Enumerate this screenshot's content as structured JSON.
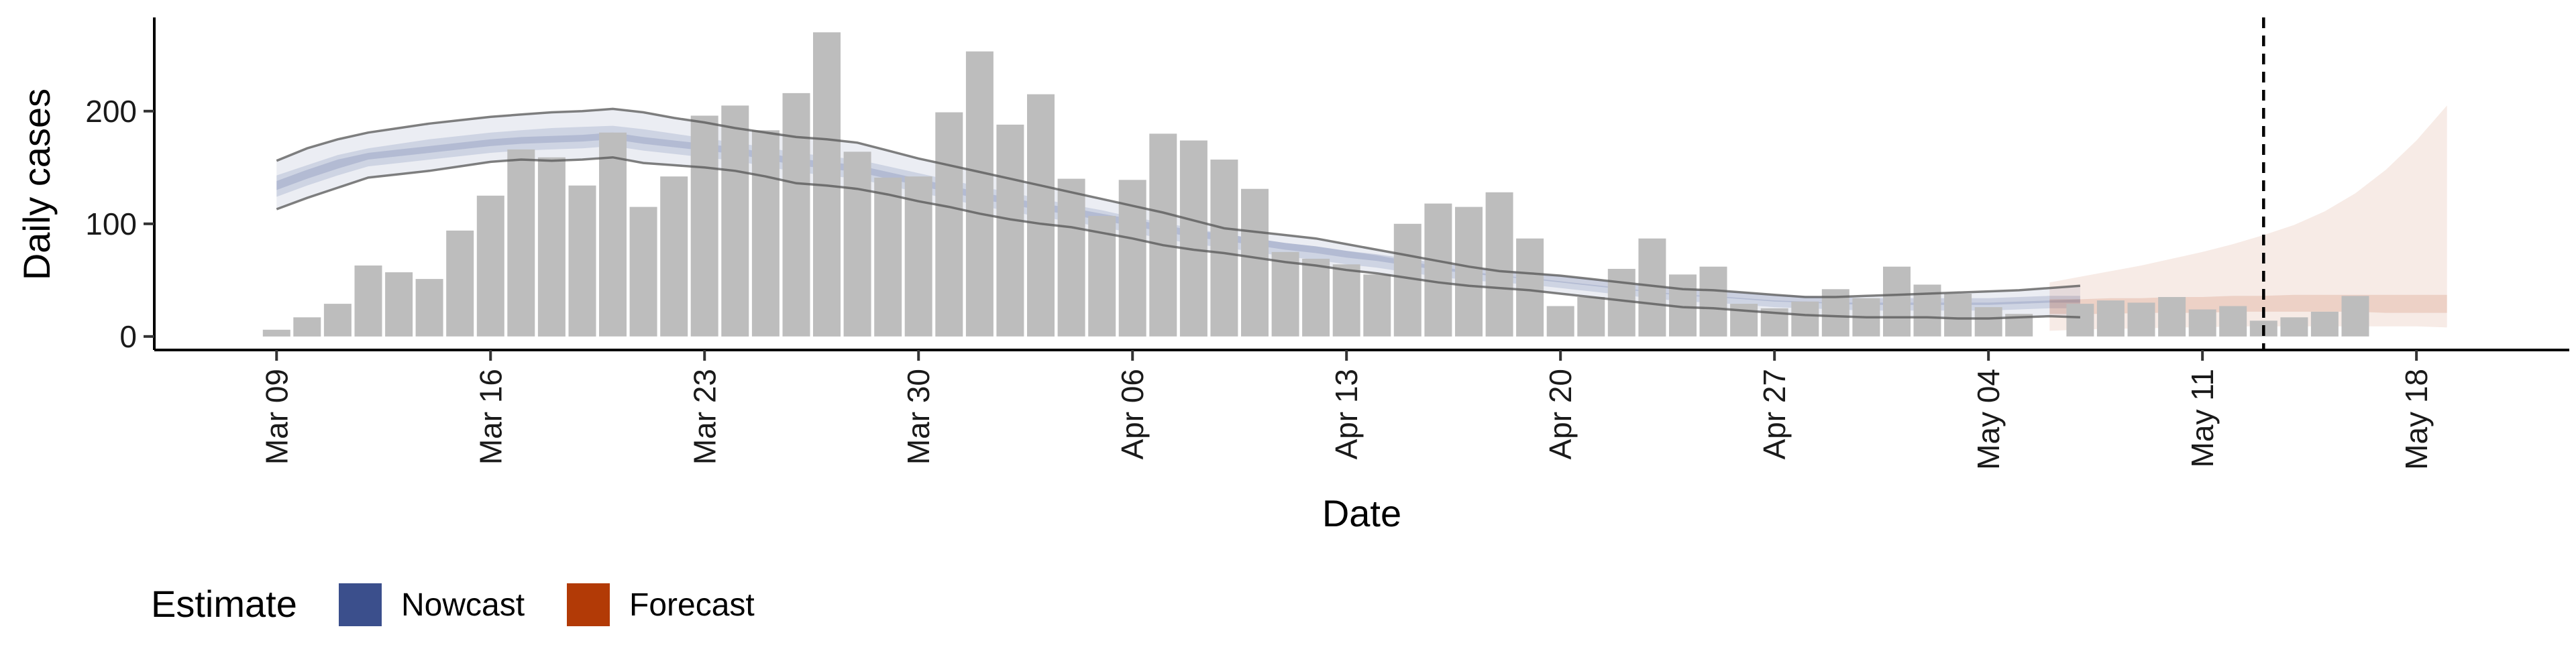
{
  "chart_data": {
    "type": "bar",
    "title": "",
    "xlabel": "Date",
    "ylabel": "Daily cases",
    "ylim": [
      -12,
      282
    ],
    "yticks": [
      0,
      100,
      200
    ],
    "xticks": [
      "Mar 09",
      "Mar 16",
      "Mar 23",
      "Mar 30",
      "Apr 06",
      "Apr 13",
      "Apr 20",
      "Apr 27",
      "May 04",
      "May 11",
      "May 18"
    ],
    "x_start": "2020-03-09",
    "x_end": "2020-05-19",
    "xlim": [
      "2020-03-05",
      "2020-05-23"
    ],
    "grid": false,
    "legend_position": "bottom-left",
    "vline_date": "2020-05-13",
    "bars": {
      "start": "2020-03-09",
      "values": [
        6,
        17,
        29,
        63,
        57,
        51,
        94,
        125,
        166,
        159,
        134,
        181,
        115,
        142,
        196,
        205,
        183,
        216,
        270,
        164,
        141,
        142,
        199,
        253,
        188,
        215,
        140,
        107,
        139,
        180,
        174,
        157,
        131,
        75,
        69,
        64,
        55,
        100,
        118,
        115,
        128,
        87,
        27,
        35,
        60,
        87,
        55,
        62,
        29,
        25,
        31,
        42,
        34,
        62,
        46,
        38,
        26,
        20,
        0,
        29,
        32,
        30,
        35,
        24,
        27,
        14,
        17,
        22,
        36
      ],
      "color": "#bdbdbd"
    },
    "legend": {
      "title": "Estimate",
      "items": [
        {
          "label": "Nowcast",
          "color": "#3b4f8c"
        },
        {
          "label": "Forecast",
          "color": "#b23a06"
        }
      ]
    },
    "series": [
      {
        "name": "Nowcast",
        "color": "#3b4f8c",
        "start": "2020-03-09",
        "lower_90": [
          113,
          123,
          132,
          141,
          144,
          147,
          151,
          155,
          157,
          156,
          157,
          159,
          154,
          152,
          150,
          147,
          142,
          136,
          134,
          131,
          126,
          120,
          115,
          109,
          104,
          100,
          97,
          92,
          87,
          81,
          77,
          74,
          70,
          66,
          63,
          59,
          56,
          52,
          48,
          45,
          43,
          41,
          38,
          35,
          32,
          29,
          26,
          25,
          23,
          21,
          19,
          18,
          17,
          17,
          17,
          16,
          16,
          17,
          18,
          17
        ],
        "upper_90": [
          156,
          167,
          175,
          181,
          185,
          189,
          192,
          195,
          197,
          199,
          200,
          202,
          199,
          194,
          190,
          185,
          181,
          177,
          175,
          172,
          165,
          158,
          152,
          146,
          140,
          134,
          128,
          122,
          116,
          110,
          103,
          96,
          93,
          90,
          87,
          82,
          77,
          72,
          67,
          62,
          58,
          56,
          54,
          51,
          48,
          45,
          42,
          41,
          39,
          37,
          35,
          35,
          36,
          37,
          38,
          39,
          40,
          41,
          43,
          45
        ],
        "lower_50": [
          124,
          134,
          143,
          151,
          154,
          157,
          160,
          163,
          165,
          166,
          167,
          169,
          165,
          162,
          159,
          156,
          151,
          146,
          143,
          140,
          134,
          128,
          122,
          116,
          111,
          106,
          102,
          97,
          92,
          87,
          82,
          79,
          75,
          71,
          68,
          64,
          61,
          57,
          53,
          50,
          48,
          46,
          43,
          40,
          37,
          34,
          31,
          30,
          28,
          26,
          25,
          24,
          23,
          23,
          23,
          23,
          23,
          24,
          25,
          25
        ],
        "upper_50": [
          143,
          152,
          161,
          167,
          171,
          175,
          178,
          181,
          183,
          185,
          186,
          187,
          184,
          180,
          176,
          172,
          168,
          163,
          160,
          157,
          151,
          145,
          139,
          133,
          128,
          122,
          117,
          112,
          106,
          101,
          96,
          91,
          87,
          83,
          80,
          76,
          72,
          67,
          62,
          58,
          54,
          52,
          49,
          46,
          43,
          40,
          37,
          36,
          34,
          32,
          31,
          30,
          30,
          30,
          30,
          30,
          30,
          31,
          32,
          33
        ],
        "lower_20": [
          130,
          140,
          149,
          157,
          160,
          163,
          166,
          169,
          171,
          172,
          173,
          175,
          171,
          168,
          165,
          162,
          157,
          152,
          149,
          146,
          140,
          134,
          128,
          122,
          117,
          112,
          108,
          103,
          98,
          93,
          88,
          85,
          81,
          77,
          74,
          70,
          67,
          63,
          59,
          56,
          53,
          51,
          48,
          45,
          42,
          39,
          36,
          35,
          33,
          31,
          30,
          29,
          28,
          28,
          28,
          28,
          28,
          29,
          30,
          30
        ],
        "upper_20": [
          138,
          148,
          157,
          163,
          166,
          169,
          172,
          175,
          177,
          178,
          179,
          181,
          177,
          174,
          171,
          168,
          163,
          158,
          155,
          152,
          146,
          140,
          134,
          128,
          123,
          118,
          114,
          109,
          104,
          99,
          94,
          91,
          87,
          83,
          80,
          76,
          73,
          69,
          65,
          62,
          59,
          57,
          54,
          51,
          48,
          45,
          42,
          41,
          39,
          37,
          36,
          35,
          34,
          34,
          34,
          34,
          34,
          35,
          36,
          36
        ]
      },
      {
        "name": "Forecast",
        "color": "#b23a06",
        "start": "2020-05-06",
        "lower_90": [
          5,
          6,
          7,
          7,
          8,
          8,
          9,
          9,
          9,
          9,
          9,
          9,
          9,
          8
        ],
        "upper_90": [
          48,
          53,
          58,
          63,
          69,
          75,
          82,
          90,
          99,
          111,
          127,
          148,
          174,
          205
        ],
        "lower_50": [
          20,
          20,
          20,
          21,
          21,
          21,
          22,
          22,
          22,
          22,
          22,
          21,
          21,
          21
        ],
        "upper_50": [
          33,
          33,
          34,
          34,
          35,
          35,
          36,
          36,
          37,
          37,
          37,
          37,
          37,
          37
        ]
      }
    ]
  }
}
